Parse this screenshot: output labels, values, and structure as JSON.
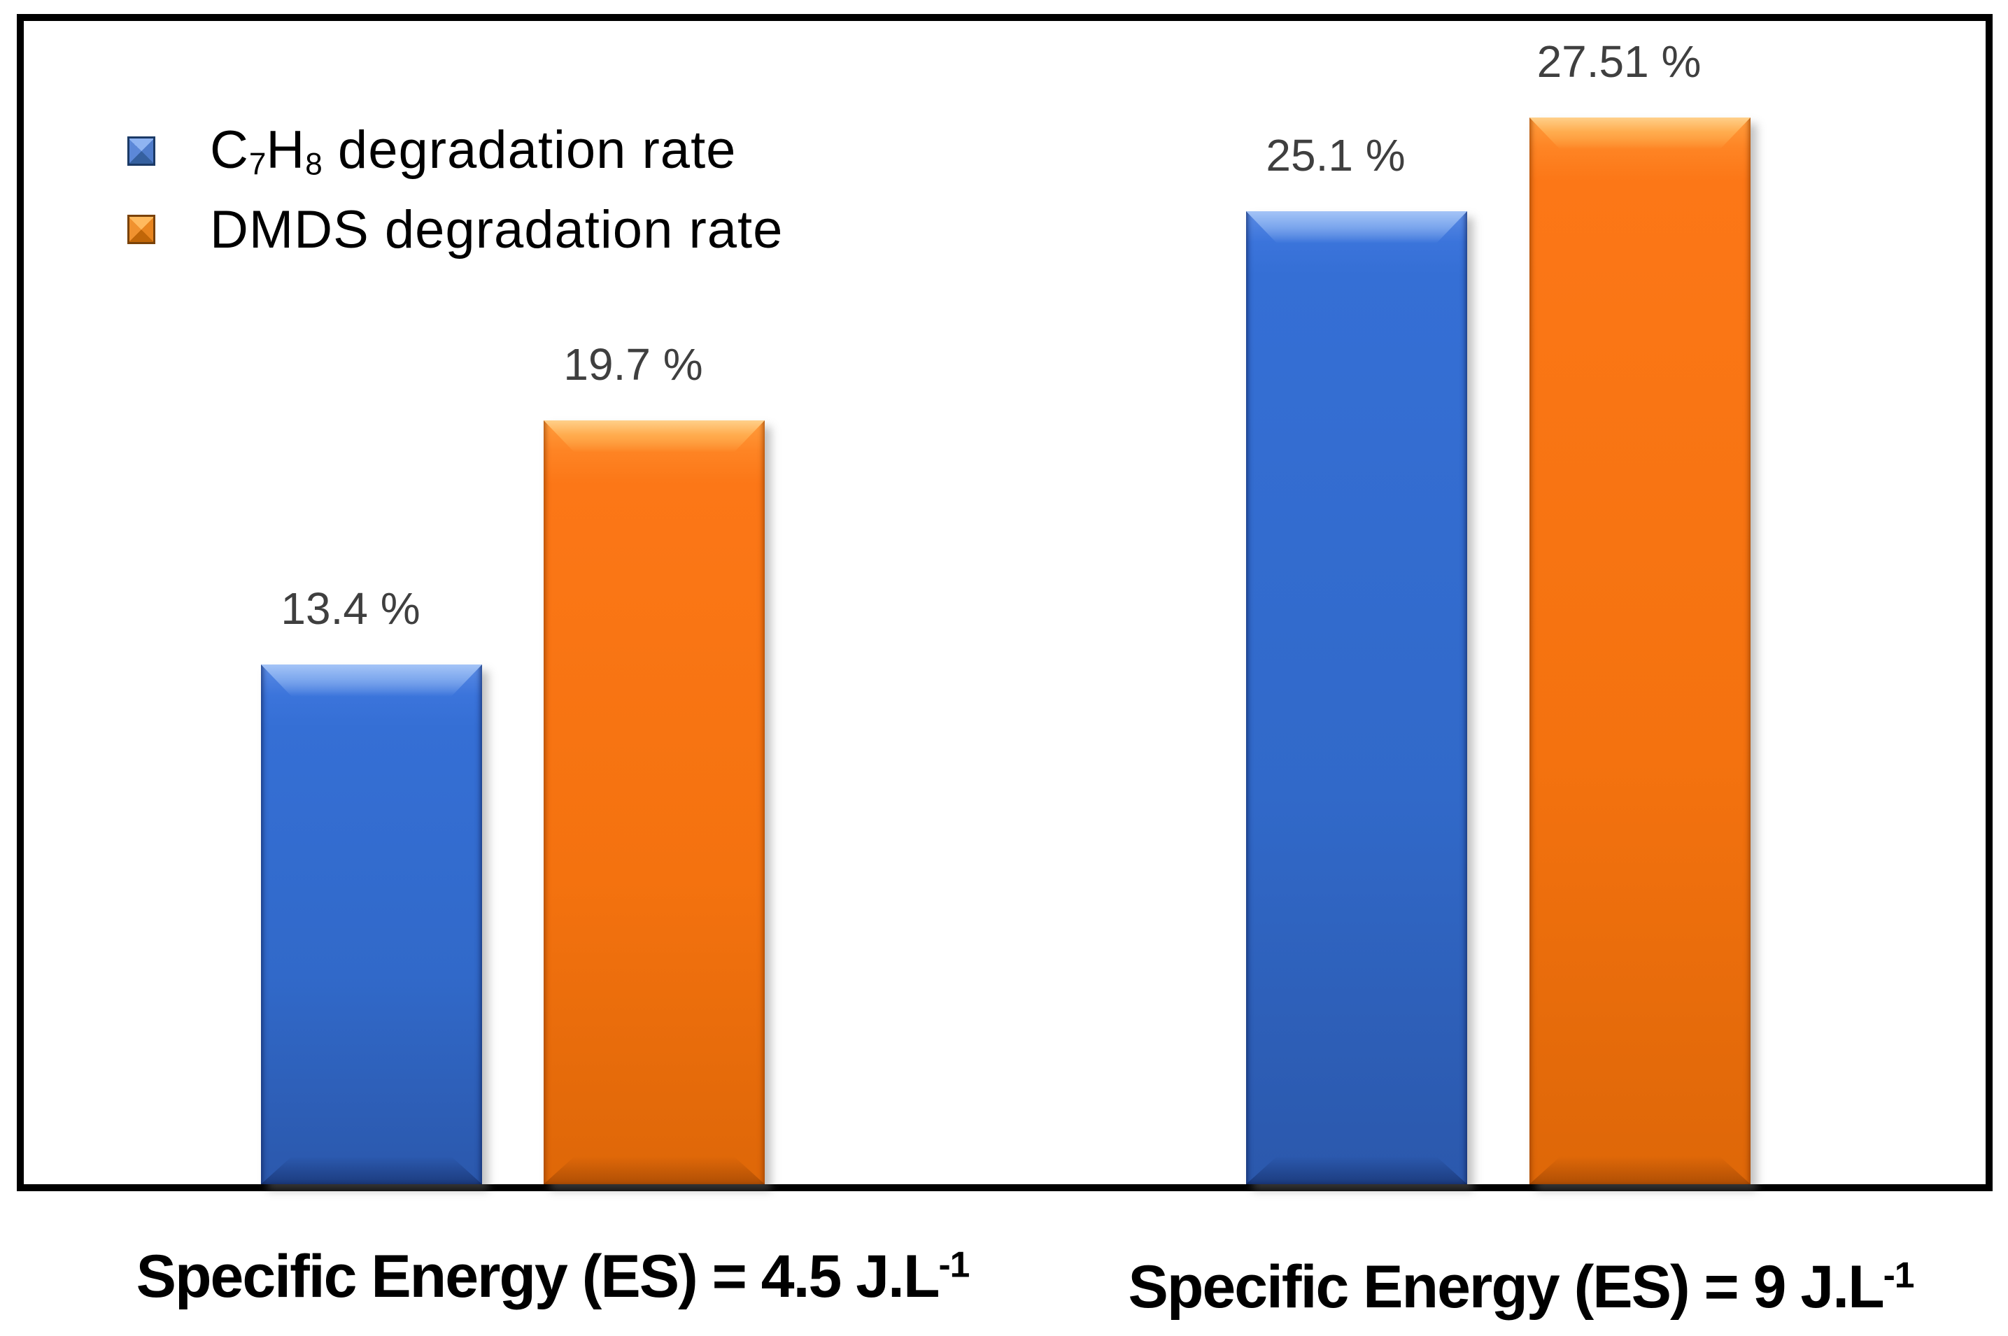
{
  "page": {
    "background": "#FFFFFF",
    "frame_border_color": "#000000"
  },
  "legend": {
    "items": [
      {
        "marker_color": "#356FD5",
        "parts": {
          "p1": "C",
          "sub1": "7",
          "p2": "H",
          "sub2": "8",
          "rest": " degradation rate"
        },
        "label_plain": "C7H8 degradation rate"
      },
      {
        "marker_color": "#FC7717",
        "label": "DMDS degradation rate"
      }
    ]
  },
  "chart_data": {
    "type": "bar",
    "categories": [
      {
        "main": "Specific Energy (ES) = 4.5 J.L",
        "sup": "-1",
        "plain": "Specific Energy (ES) = 4.5 J.L-1"
      },
      {
        "main": "Specific Energy (ES) = 9 J.L",
        "sup": "-1",
        "plain": "Specific Energy (ES) = 9 J.L-1"
      }
    ],
    "series": [
      {
        "name": "C7H8 degradation rate",
        "color": "#356FD5",
        "values": [
          13.4,
          25.1
        ],
        "labels": [
          "13.4 %",
          "25.1 %"
        ]
      },
      {
        "name": "DMDS degradation rate",
        "color": "#FC7717",
        "values": [
          19.7,
          27.51
        ],
        "labels": [
          "19.7 %",
          "27.51 %"
        ]
      }
    ],
    "unit": "%",
    "ylim": [
      0,
      30
    ],
    "grid": false,
    "axes_visible": false,
    "legend_position": "top-left",
    "data_label_color": "#3F3F3F"
  }
}
